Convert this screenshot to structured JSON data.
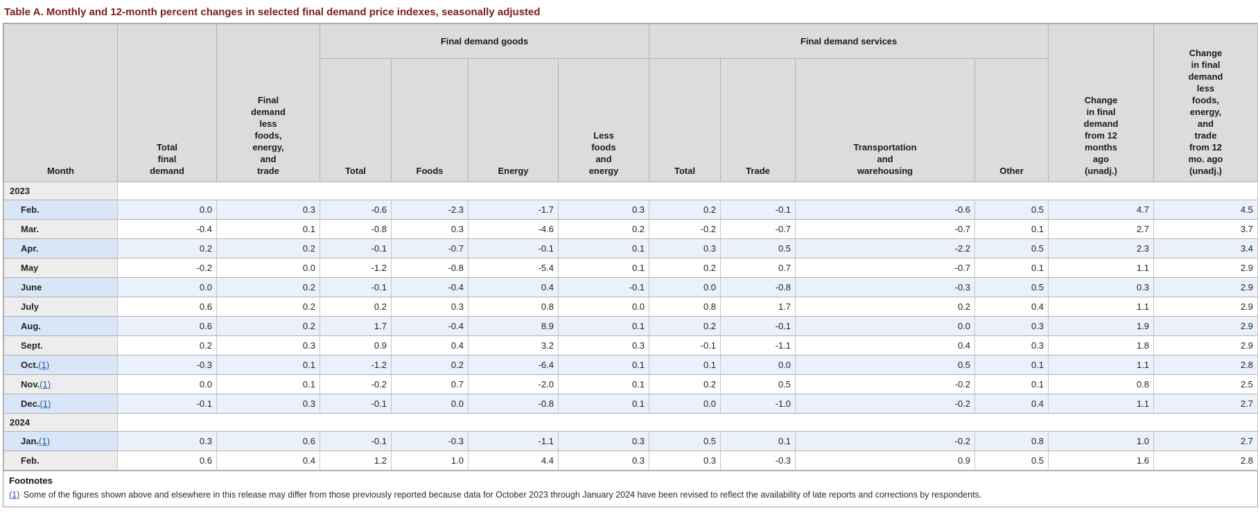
{
  "title": "Table A. Monthly and 12-month percent changes in selected final demand price indexes, seasonally adjusted",
  "table": {
    "group_headers": {
      "goods": "Final demand goods",
      "services": "Final demand services"
    },
    "columns": {
      "month": "Month",
      "total_final_demand": "Total\nfinal\ndemand",
      "fd_less_foods_energy_trade": "Final\ndemand\nless\nfoods,\nenergy,\nand\ntrade",
      "goods_total": "Total",
      "foods": "Foods",
      "energy": "Energy",
      "less_foods_and_energy": "Less\nfoods\nand\nenergy",
      "services_total": "Total",
      "trade": "Trade",
      "transportation_and_warehousing": "Transportation\nand\nwarehousing",
      "other": "Other",
      "change_12_months": "Change\nin final\ndemand\nfrom 12\nmonths\nago\n(unadj.)",
      "change_12_months_less": "Change\nin final\ndemand\nless\nfoods,\nenergy,\nand\ntrade\nfrom 12\nmo. ago\n(unadj.)"
    },
    "sections": [
      {
        "year": "2023",
        "rows": [
          {
            "month": "Feb.",
            "footnote_marker": "",
            "values": [
              "0.0",
              "0.3",
              "-0.6",
              "-2.3",
              "-1.7",
              "0.3",
              "0.2",
              "-0.1",
              "-0.6",
              "0.5",
              "4.7",
              "4.5"
            ]
          },
          {
            "month": "Mar.",
            "footnote_marker": "",
            "values": [
              "-0.4",
              "0.1",
              "-0.8",
              "0.3",
              "-4.6",
              "0.2",
              "-0.2",
              "-0.7",
              "-0.7",
              "0.1",
              "2.7",
              "3.7"
            ]
          },
          {
            "month": "Apr.",
            "footnote_marker": "",
            "values": [
              "0.2",
              "0.2",
              "-0.1",
              "-0.7",
              "-0.1",
              "0.1",
              "0.3",
              "0.5",
              "-2.2",
              "0.5",
              "2.3",
              "3.4"
            ]
          },
          {
            "month": "May",
            "footnote_marker": "",
            "values": [
              "-0.2",
              "0.0",
              "-1.2",
              "-0.8",
              "-5.4",
              "0.1",
              "0.2",
              "0.7",
              "-0.7",
              "0.1",
              "1.1",
              "2.9"
            ]
          },
          {
            "month": "June",
            "footnote_marker": "",
            "values": [
              "0.0",
              "0.2",
              "-0.1",
              "-0.4",
              "0.4",
              "-0.1",
              "0.0",
              "-0.8",
              "-0.3",
              "0.5",
              "0.3",
              "2.9"
            ]
          },
          {
            "month": "July",
            "footnote_marker": "",
            "values": [
              "0.6",
              "0.2",
              "0.2",
              "0.3",
              "0.8",
              "0.0",
              "0.8",
              "1.7",
              "0.2",
              "0.4",
              "1.1",
              "2.9"
            ]
          },
          {
            "month": "Aug.",
            "footnote_marker": "",
            "values": [
              "0.6",
              "0.2",
              "1.7",
              "-0.4",
              "8.9",
              "0.1",
              "0.2",
              "-0.1",
              "0.0",
              "0.3",
              "1.9",
              "2.9"
            ]
          },
          {
            "month": "Sept.",
            "footnote_marker": "",
            "values": [
              "0.2",
              "0.3",
              "0.9",
              "0.4",
              "3.2",
              "0.3",
              "-0.1",
              "-1.1",
              "0.4",
              "0.3",
              "1.8",
              "2.9"
            ]
          },
          {
            "month": "Oct.",
            "footnote_marker": "(1)",
            "values": [
              "-0.3",
              "0.1",
              "-1.2",
              "0.2",
              "-6.4",
              "0.1",
              "0.1",
              "0.0",
              "0.5",
              "0.1",
              "1.1",
              "2.8"
            ]
          },
          {
            "month": "Nov.",
            "footnote_marker": "(1)",
            "values": [
              "0.0",
              "0.1",
              "-0.2",
              "0.7",
              "-2.0",
              "0.1",
              "0.2",
              "0.5",
              "-0.2",
              "0.1",
              "0.8",
              "2.5"
            ]
          },
          {
            "month": "Dec.",
            "footnote_marker": "(1)",
            "values": [
              "-0.1",
              "0.3",
              "-0.1",
              "0.0",
              "-0.8",
              "0.1",
              "0.0",
              "-1.0",
              "-0.2",
              "0.4",
              "1.1",
              "2.7"
            ]
          }
        ]
      },
      {
        "year": "2024",
        "rows": [
          {
            "month": "Jan.",
            "footnote_marker": "(1)",
            "values": [
              "0.3",
              "0.6",
              "-0.1",
              "-0.3",
              "-1.1",
              "0.3",
              "0.5",
              "0.1",
              "-0.2",
              "0.8",
              "1.0",
              "2.7"
            ]
          },
          {
            "month": "Feb.",
            "footnote_marker": "",
            "values": [
              "0.6",
              "0.4",
              "1.2",
              "1.0",
              "4.4",
              "0.3",
              "0.3",
              "-0.3",
              "0.9",
              "0.5",
              "1.6",
              "2.8"
            ]
          }
        ]
      }
    ]
  },
  "footnotes": {
    "heading": "Footnotes",
    "items": [
      {
        "marker": "(1)",
        "text": "Some of the figures shown above and elsewhere in this release may differ from those previously reported because data for October 2023 through January 2024 have been revised to reflect the availability of late reports and corrections by respondents."
      }
    ]
  }
}
